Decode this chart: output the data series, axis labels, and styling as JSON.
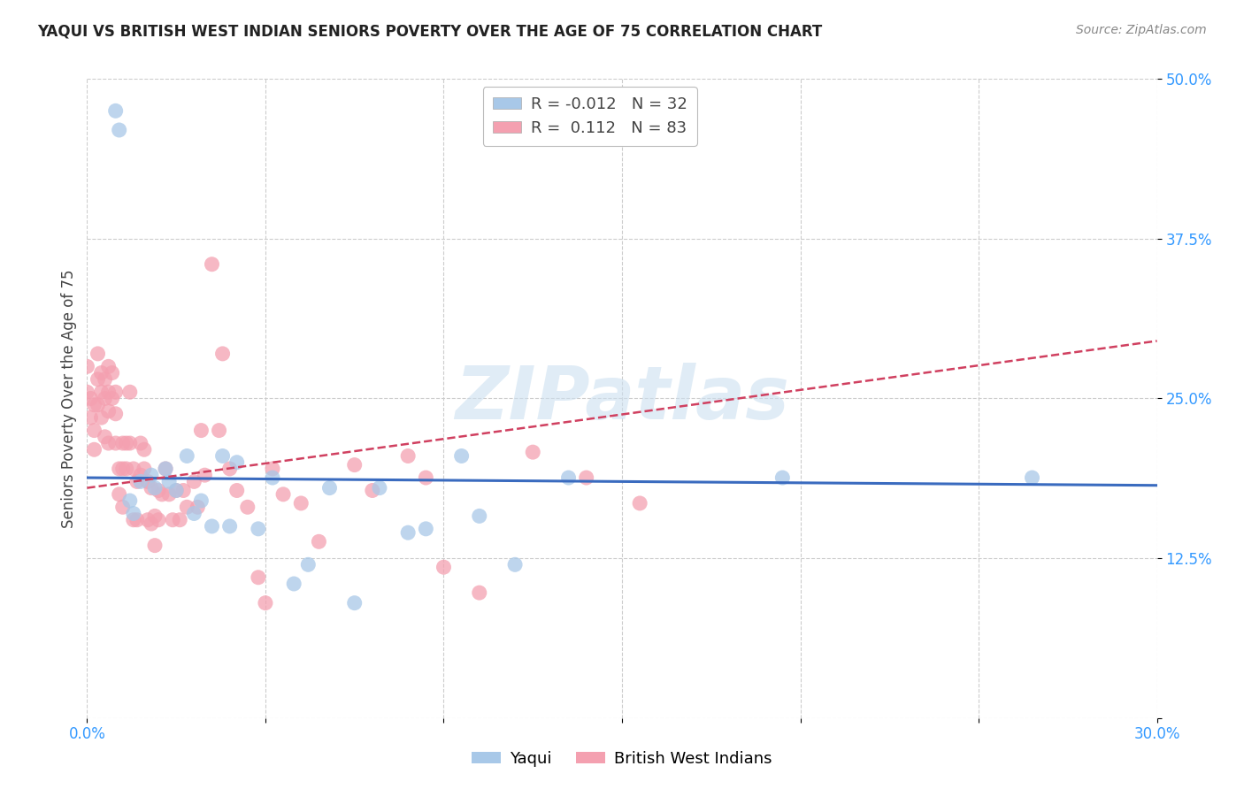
{
  "title": "YAQUI VS BRITISH WEST INDIAN SENIORS POVERTY OVER THE AGE OF 75 CORRELATION CHART",
  "source": "Source: ZipAtlas.com",
  "ylabel": "Seniors Poverty Over the Age of 75",
  "xlim": [
    0.0,
    0.3
  ],
  "ylim": [
    0.0,
    0.5
  ],
  "xticks": [
    0.0,
    0.05,
    0.1,
    0.15,
    0.2,
    0.25,
    0.3
  ],
  "yticks": [
    0.0,
    0.125,
    0.25,
    0.375,
    0.5
  ],
  "xticklabels": [
    "0.0%",
    "",
    "",
    "",
    "",
    "",
    "30.0%"
  ],
  "yticklabels": [
    "",
    "12.5%",
    "25.0%",
    "37.5%",
    "50.0%"
  ],
  "legend_labels": [
    "Yaqui",
    "British West Indians"
  ],
  "blue_R": -0.012,
  "blue_N": 32,
  "pink_R": 0.112,
  "pink_N": 83,
  "blue_color": "#a8c8e8",
  "pink_color": "#f4a0b0",
  "blue_line_color": "#3a6bbf",
  "pink_line_color": "#d04060",
  "background_color": "#ffffff",
  "watermark": "ZIPatlas",
  "blue_points_x": [
    0.008,
    0.009,
    0.012,
    0.013,
    0.015,
    0.018,
    0.019,
    0.022,
    0.023,
    0.025,
    0.028,
    0.03,
    0.032,
    0.035,
    0.038,
    0.04,
    0.042,
    0.048,
    0.052,
    0.058,
    0.062,
    0.068,
    0.075,
    0.082,
    0.09,
    0.095,
    0.105,
    0.11,
    0.12,
    0.135,
    0.195,
    0.265
  ],
  "blue_points_y": [
    0.475,
    0.46,
    0.17,
    0.16,
    0.185,
    0.19,
    0.18,
    0.195,
    0.185,
    0.178,
    0.205,
    0.16,
    0.17,
    0.15,
    0.205,
    0.15,
    0.2,
    0.148,
    0.188,
    0.105,
    0.12,
    0.18,
    0.09,
    0.18,
    0.145,
    0.148,
    0.205,
    0.158,
    0.12,
    0.188,
    0.188,
    0.188
  ],
  "pink_points_x": [
    0.0,
    0.0,
    0.001,
    0.001,
    0.002,
    0.002,
    0.002,
    0.003,
    0.003,
    0.003,
    0.004,
    0.004,
    0.004,
    0.005,
    0.005,
    0.005,
    0.006,
    0.006,
    0.006,
    0.006,
    0.007,
    0.007,
    0.008,
    0.008,
    0.008,
    0.009,
    0.009,
    0.01,
    0.01,
    0.01,
    0.011,
    0.011,
    0.012,
    0.012,
    0.013,
    0.013,
    0.014,
    0.014,
    0.015,
    0.015,
    0.016,
    0.016,
    0.017,
    0.017,
    0.018,
    0.018,
    0.019,
    0.019,
    0.02,
    0.02,
    0.021,
    0.022,
    0.023,
    0.024,
    0.025,
    0.026,
    0.027,
    0.028,
    0.03,
    0.031,
    0.032,
    0.033,
    0.035,
    0.037,
    0.038,
    0.04,
    0.042,
    0.045,
    0.048,
    0.05,
    0.052,
    0.055,
    0.06,
    0.065,
    0.075,
    0.08,
    0.09,
    0.095,
    0.1,
    0.11,
    0.125,
    0.14,
    0.155
  ],
  "pink_points_y": [
    0.275,
    0.255,
    0.25,
    0.235,
    0.245,
    0.225,
    0.21,
    0.285,
    0.265,
    0.245,
    0.27,
    0.255,
    0.235,
    0.265,
    0.25,
    0.22,
    0.275,
    0.255,
    0.24,
    0.215,
    0.27,
    0.25,
    0.255,
    0.238,
    0.215,
    0.195,
    0.175,
    0.215,
    0.195,
    0.165,
    0.215,
    0.195,
    0.255,
    0.215,
    0.195,
    0.155,
    0.185,
    0.155,
    0.215,
    0.19,
    0.21,
    0.195,
    0.185,
    0.155,
    0.18,
    0.152,
    0.158,
    0.135,
    0.178,
    0.155,
    0.175,
    0.195,
    0.175,
    0.155,
    0.178,
    0.155,
    0.178,
    0.165,
    0.185,
    0.165,
    0.225,
    0.19,
    0.355,
    0.225,
    0.285,
    0.195,
    0.178,
    0.165,
    0.11,
    0.09,
    0.195,
    0.175,
    0.168,
    0.138,
    0.198,
    0.178,
    0.205,
    0.188,
    0.118,
    0.098,
    0.208,
    0.188,
    0.168
  ]
}
